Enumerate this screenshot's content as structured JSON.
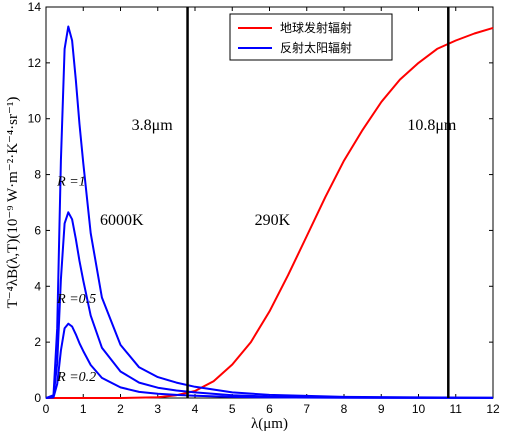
{
  "chart_data": {
    "type": "line",
    "xlabel": "λ(μm)",
    "ylabel": "T⁻⁴λB(λ,T)(10⁻⁹ W·m⁻²·K⁻⁴·sr⁻¹)",
    "xlim": [
      0,
      12
    ],
    "ylim": [
      0,
      14
    ],
    "x_ticks": [
      "0",
      "1",
      "2",
      "3",
      "4",
      "5",
      "6",
      "7",
      "8",
      "9",
      "10",
      "11",
      "12"
    ],
    "y_ticks": [
      "0",
      "2",
      "4",
      "6",
      "8",
      "10",
      "12",
      "14"
    ],
    "legend_position": "top-right",
    "series": [
      {
        "name": "地球发射辐射",
        "color": "#ff0000",
        "x": [
          0,
          2,
          3,
          3.5,
          4,
          4.5,
          5,
          5.5,
          6,
          6.5,
          7,
          7.5,
          8,
          8.5,
          9,
          9.5,
          10,
          10.5,
          11,
          11.5,
          12
        ],
        "values": [
          0,
          0,
          0.03,
          0.1,
          0.25,
          0.6,
          1.2,
          2.0,
          3.1,
          4.4,
          5.8,
          7.2,
          8.5,
          9.6,
          10.6,
          11.4,
          12.0,
          12.5,
          12.8,
          13.05,
          13.25
        ]
      },
      {
        "name": "反射太阳辐射",
        "color": "#0000ff",
        "label": "R=1",
        "x": [
          0,
          0.2,
          0.3,
          0.4,
          0.5,
          0.6,
          0.7,
          0.8,
          0.9,
          1.0,
          1.2,
          1.5,
          2.0,
          2.5,
          3.0,
          3.5,
          4.0,
          5.0,
          6.0,
          8.0,
          10.0,
          12.0
        ],
        "values": [
          0,
          0.1,
          2.5,
          8.5,
          12.5,
          13.3,
          12.8,
          11.4,
          9.8,
          8.4,
          5.9,
          3.6,
          1.9,
          1.1,
          0.75,
          0.55,
          0.4,
          0.2,
          0.11,
          0.04,
          0.02,
          0.01
        ]
      },
      {
        "color": "#0000ff",
        "label": "R=0.5",
        "x": [
          0,
          0.2,
          0.3,
          0.4,
          0.5,
          0.6,
          0.7,
          0.8,
          0.9,
          1.0,
          1.2,
          1.5,
          2.0,
          2.5,
          3.0,
          3.5,
          4.0,
          5.0,
          6.0,
          8.0,
          10.0,
          12.0
        ],
        "values": [
          0,
          0.05,
          1.25,
          4.25,
          6.25,
          6.65,
          6.4,
          5.7,
          4.9,
          4.2,
          2.95,
          1.8,
          0.95,
          0.55,
          0.37,
          0.27,
          0.2,
          0.1,
          0.05,
          0.02,
          0.01,
          0.005
        ]
      },
      {
        "color": "#0000ff",
        "label": "R=0.2",
        "x": [
          0,
          0.2,
          0.3,
          0.4,
          0.5,
          0.6,
          0.7,
          0.8,
          0.9,
          1.0,
          1.2,
          1.5,
          2.0,
          2.5,
          3.0,
          3.5,
          4.0,
          5.0,
          6.0,
          8.0,
          10.0,
          12.0
        ],
        "values": [
          0,
          0.02,
          0.5,
          1.7,
          2.5,
          2.66,
          2.56,
          2.28,
          1.96,
          1.68,
          1.18,
          0.72,
          0.38,
          0.22,
          0.15,
          0.11,
          0.08,
          0.04,
          0.02,
          0.008,
          0.004,
          0.002
        ]
      }
    ],
    "vlines": [
      3.8,
      10.8
    ],
    "annotations": [
      {
        "text": "3.8μm"
      },
      {
        "text": "10.8μm"
      },
      {
        "text": "6000K"
      },
      {
        "text": "290K"
      },
      {
        "text": "R =1"
      },
      {
        "text": "R =0.5"
      },
      {
        "text": "R =0.2"
      }
    ]
  }
}
